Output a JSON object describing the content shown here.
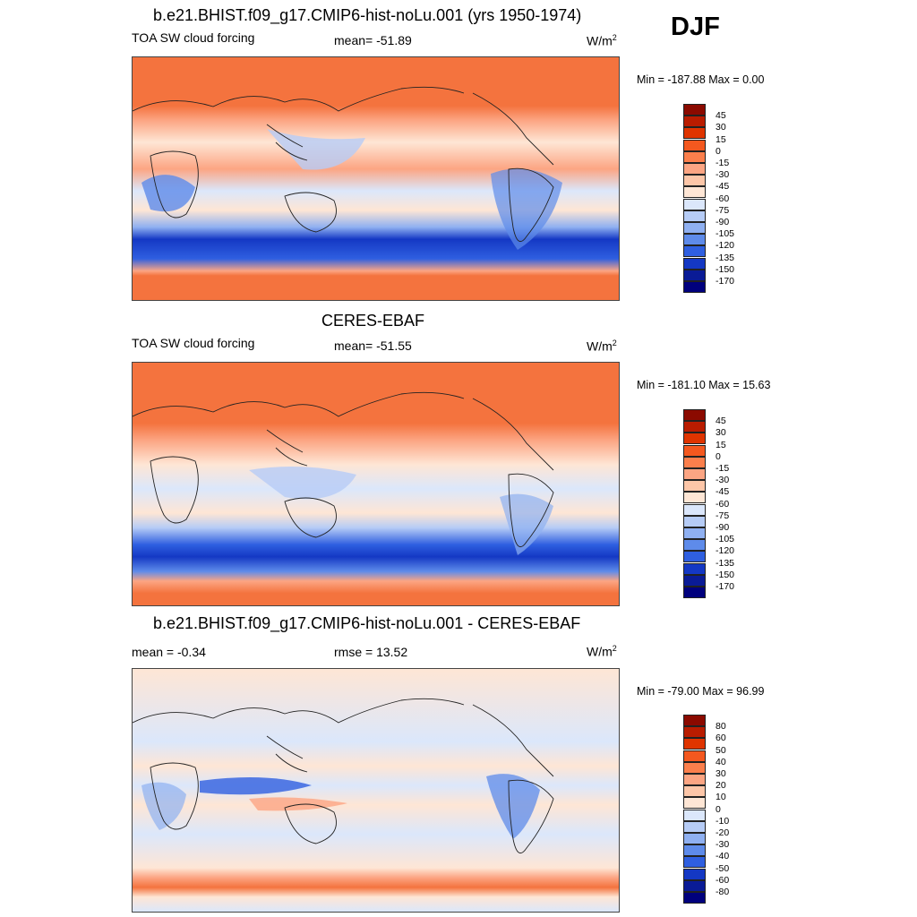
{
  "season": "DJF",
  "panels": [
    {
      "id": "model",
      "title": "b.e21.BHIST.f09_g17.CMIP6-hist-noLu.001 (yrs 1950-1974)",
      "left_label": "TOA SW cloud forcing",
      "center_label": "mean= -51.89",
      "units": "W/m",
      "units_sup": "2",
      "minmax": "Min = -187.88 Max =   0.00",
      "colorbar": {
        "labels": [
          "45",
          "30",
          "15",
          "0",
          "-15",
          "-30",
          "-45",
          "-60",
          "-75",
          "-90",
          "-105",
          "-120",
          "-135",
          "-150",
          "-170"
        ],
        "colors": [
          "#8b0a00",
          "#b91c00",
          "#df3400",
          "#f4581f",
          "#fb7f4c",
          "#fca583",
          "#fdc6a8",
          "#fee6d5",
          "#dbe7fb",
          "#b6ccf6",
          "#8fb0f1",
          "#5e8bea",
          "#2f5fe0",
          "#1438c4",
          "#0a1b96",
          "#00007d"
        ]
      },
      "chart_data": {
        "type": "heatmap",
        "variable": "TOA SW cloud forcing",
        "statistic_mean": -51.89,
        "min": -187.88,
        "max": 0.0,
        "contour_levels": [
          -170,
          -150,
          -135,
          -120,
          -105,
          -90,
          -75,
          -60,
          -45,
          -30,
          -15,
          0,
          15,
          30,
          45
        ],
        "bands": [
          {
            "lat_range": [
              60,
              90
            ],
            "value": 0
          },
          {
            "lat_range": [
              40,
              60
            ],
            "value": -45
          },
          {
            "lat_range": [
              15,
              40
            ],
            "value": -30
          },
          {
            "lat_range": [
              -10,
              15
            ],
            "value": -60
          },
          {
            "lat_range": [
              -30,
              -10
            ],
            "value": -45
          },
          {
            "lat_range": [
              -45,
              -30
            ],
            "value": -90
          },
          {
            "lat_range": [
              -65,
              -45
            ],
            "value": -150
          },
          {
            "lat_range": [
              -90,
              -65
            ],
            "value": 0
          }
        ]
      }
    },
    {
      "id": "obs",
      "title": "CERES-EBAF",
      "left_label": "TOA SW cloud forcing",
      "center_label": "mean= -51.55",
      "units": "W/m",
      "units_sup": "2",
      "minmax": "Min = -181.10 Max =  15.63",
      "colorbar": {
        "labels": [
          "45",
          "30",
          "15",
          "0",
          "-15",
          "-30",
          "-45",
          "-60",
          "-75",
          "-90",
          "-105",
          "-120",
          "-135",
          "-150",
          "-170"
        ],
        "colors": [
          "#8b0a00",
          "#b91c00",
          "#df3400",
          "#f4581f",
          "#fb7f4c",
          "#fca583",
          "#fdc6a8",
          "#fee6d5",
          "#dbe7fb",
          "#b6ccf6",
          "#8fb0f1",
          "#5e8bea",
          "#2f5fe0",
          "#1438c4",
          "#0a1b96",
          "#00007d"
        ]
      },
      "chart_data": {
        "type": "heatmap",
        "variable": "TOA SW cloud forcing",
        "statistic_mean": -51.55,
        "min": -181.1,
        "max": 15.63,
        "contour_levels": [
          -170,
          -150,
          -135,
          -120,
          -105,
          -90,
          -75,
          -60,
          -45,
          -30,
          -15,
          0,
          15,
          30,
          45
        ],
        "bands": [
          {
            "lat_range": [
              60,
              90
            ],
            "value": 0
          },
          {
            "lat_range": [
              40,
              60
            ],
            "value": -30
          },
          {
            "lat_range": [
              15,
              40
            ],
            "value": -30
          },
          {
            "lat_range": [
              -10,
              15
            ],
            "value": -60
          },
          {
            "lat_range": [
              -30,
              -10
            ],
            "value": -45
          },
          {
            "lat_range": [
              -45,
              -30
            ],
            "value": -90
          },
          {
            "lat_range": [
              -65,
              -45
            ],
            "value": -150
          },
          {
            "lat_range": [
              -90,
              -65
            ],
            "value": -15
          }
        ]
      }
    },
    {
      "id": "diff",
      "title": "b.e21.BHIST.f09_g17.CMIP6-hist-noLu.001 - CERES-EBAF",
      "left_label": "mean =  -0.34",
      "center_label": "rmse =  13.52",
      "units": "W/m",
      "units_sup": "2",
      "minmax": "Min = -79.00 Max =  96.99",
      "colorbar": {
        "labels": [
          "80",
          "60",
          "50",
          "40",
          "30",
          "20",
          "10",
          "0",
          "-10",
          "-20",
          "-30",
          "-40",
          "-50",
          "-60",
          "-80"
        ],
        "colors": [
          "#8b0a00",
          "#b91c00",
          "#df3400",
          "#f4581f",
          "#fb7f4c",
          "#fca583",
          "#fdc6a8",
          "#fee6d5",
          "#dbe7fb",
          "#b6ccf6",
          "#8fb0f1",
          "#5e8bea",
          "#2f5fe0",
          "#1438c4",
          "#0a1b96",
          "#00007d"
        ]
      },
      "chart_data": {
        "type": "heatmap",
        "variable": "TOA SW cloud forcing difference",
        "statistic_mean": -0.34,
        "statistic_rmse": 13.52,
        "min": -79.0,
        "max": 96.99,
        "contour_levels": [
          -80,
          -60,
          -50,
          -40,
          -30,
          -20,
          -10,
          0,
          10,
          20,
          30,
          40,
          50,
          60,
          80
        ],
        "bands": [
          {
            "lat_range": [
              60,
              90
            ],
            "value": 5
          },
          {
            "lat_range": [
              15,
              60
            ],
            "value": 0
          },
          {
            "lat_range": [
              -10,
              15
            ],
            "value": -10
          },
          {
            "lat_range": [
              -30,
              -10
            ],
            "value": 0
          },
          {
            "lat_range": [
              -60,
              -30
            ],
            "value": -5
          },
          {
            "lat_range": [
              -70,
              -60
            ],
            "value": 30
          },
          {
            "lat_range": [
              -90,
              -70
            ],
            "value": 0
          }
        ]
      }
    }
  ]
}
